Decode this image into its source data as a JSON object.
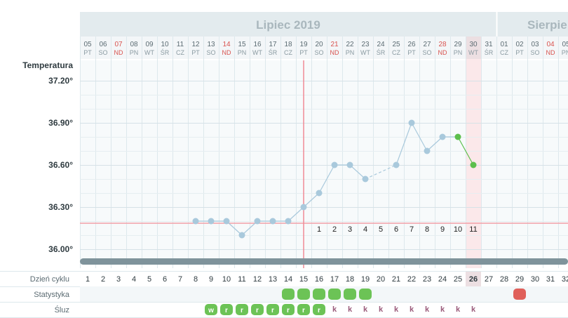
{
  "months": [
    {
      "label": "Lipiec 2019"
    },
    {
      "label": "Sierpie"
    }
  ],
  "temperature_label": "Temperatura",
  "days": [
    {
      "d": "05",
      "w": "PT",
      "red": false
    },
    {
      "d": "06",
      "w": "SO",
      "red": false
    },
    {
      "d": "07",
      "w": "ND",
      "red": true
    },
    {
      "d": "08",
      "w": "PN",
      "red": false
    },
    {
      "d": "09",
      "w": "WT",
      "red": false
    },
    {
      "d": "10",
      "w": "ŚR",
      "red": false
    },
    {
      "d": "11",
      "w": "CZ",
      "red": false
    },
    {
      "d": "12",
      "w": "PT",
      "red": false
    },
    {
      "d": "13",
      "w": "SO",
      "red": false
    },
    {
      "d": "14",
      "w": "ND",
      "red": true
    },
    {
      "d": "15",
      "w": "PN",
      "red": false
    },
    {
      "d": "16",
      "w": "WT",
      "red": false
    },
    {
      "d": "17",
      "w": "ŚR",
      "red": false
    },
    {
      "d": "18",
      "w": "CZ",
      "red": false
    },
    {
      "d": "19",
      "w": "PT",
      "red": false
    },
    {
      "d": "20",
      "w": "SO",
      "red": false
    },
    {
      "d": "21",
      "w": "ND",
      "red": true
    },
    {
      "d": "22",
      "w": "PN",
      "red": false
    },
    {
      "d": "23",
      "w": "WT",
      "red": false
    },
    {
      "d": "24",
      "w": "ŚR",
      "red": false
    },
    {
      "d": "25",
      "w": "CZ",
      "red": false
    },
    {
      "d": "26",
      "w": "PT",
      "red": false
    },
    {
      "d": "27",
      "w": "SO",
      "red": false
    },
    {
      "d": "28",
      "w": "ND",
      "red": true
    },
    {
      "d": "29",
      "w": "PN",
      "red": false
    },
    {
      "d": "30",
      "w": "WT",
      "red": false
    },
    {
      "d": "31",
      "w": "ŚR",
      "red": false
    },
    {
      "d": "01",
      "w": "CZ",
      "red": false
    },
    {
      "d": "02",
      "w": "PT",
      "red": false
    },
    {
      "d": "03",
      "w": "SO",
      "red": false
    },
    {
      "d": "04",
      "w": "ND",
      "red": true
    },
    {
      "d": "05",
      "w": "PN",
      "red": false
    }
  ],
  "chart_data": {
    "type": "line",
    "y_ticks": [
      "37.20°",
      "36.90°",
      "36.60°",
      "36.30°",
      "36.00°"
    ],
    "ylim": [
      35.95,
      37.3
    ],
    "coverline": 36.185,
    "ovulation_day_index": 14,
    "today_index": 25,
    "points": [
      {
        "i": 7,
        "v": 36.2
      },
      {
        "i": 8,
        "v": 36.2
      },
      {
        "i": 9,
        "v": 36.2
      },
      {
        "i": 10,
        "v": 36.1
      },
      {
        "i": 11,
        "v": 36.2
      },
      {
        "i": 12,
        "v": 36.2
      },
      {
        "i": 13,
        "v": 36.2
      },
      {
        "i": 14,
        "v": 36.3
      },
      {
        "i": 15,
        "v": 36.4
      },
      {
        "i": 16,
        "v": 36.6
      },
      {
        "i": 17,
        "v": 36.6
      },
      {
        "i": 18,
        "v": 36.5
      },
      {
        "i": 20,
        "v": 36.6
      },
      {
        "i": 21,
        "v": 36.9
      },
      {
        "i": 22,
        "v": 36.7
      },
      {
        "i": 23,
        "v": 36.8
      },
      {
        "i": 24,
        "v": 36.8
      },
      {
        "i": 25,
        "v": 36.6
      }
    ],
    "luteal_labels": [
      {
        "i": 15,
        "t": "1"
      },
      {
        "i": 16,
        "t": "2"
      },
      {
        "i": 17,
        "t": "3"
      },
      {
        "i": 18,
        "t": "4"
      },
      {
        "i": 19,
        "t": "5"
      },
      {
        "i": 20,
        "t": "6"
      },
      {
        "i": 21,
        "t": "7"
      },
      {
        "i": 22,
        "t": "8"
      },
      {
        "i": 23,
        "t": "9"
      },
      {
        "i": 24,
        "t": "10"
      },
      {
        "i": 25,
        "t": "11"
      }
    ],
    "colors": {
      "point": "#a9c9dc",
      "line": "#a9c9dc",
      "recent": "#5cbf4c",
      "coverline": "#f2a0a8",
      "ovulation": "#f08a96",
      "today_band": "#fbe8ea"
    }
  },
  "rows": {
    "cycle_label": "Dzień cyklu",
    "stats_label": "Statystyka",
    "mucus_label": "Śluz",
    "cycle_days": [
      "1",
      "2",
      "3",
      "4",
      "5",
      "6",
      "7",
      "8",
      "9",
      "10",
      "11",
      "12",
      "13",
      "14",
      "15",
      "16",
      "17",
      "18",
      "19",
      "20",
      "21",
      "22",
      "23",
      "24",
      "25",
      "26",
      "27",
      "28",
      "29",
      "30",
      "31",
      "32"
    ],
    "stats_marks": [
      13,
      14,
      15,
      16,
      17,
      18
    ],
    "stats_new_cycle_mark": 28,
    "mucus": [
      {
        "i": 8,
        "t": "w"
      },
      {
        "i": 9,
        "t": "r"
      },
      {
        "i": 10,
        "t": "r"
      },
      {
        "i": 11,
        "t": "r"
      },
      {
        "i": 12,
        "t": "r"
      },
      {
        "i": 13,
        "t": "r"
      },
      {
        "i": 14,
        "t": "r"
      },
      {
        "i": 15,
        "t": "r"
      },
      {
        "i": 16,
        "t": "k"
      },
      {
        "i": 17,
        "t": "k"
      },
      {
        "i": 18,
        "t": "k"
      },
      {
        "i": 19,
        "t": "k"
      },
      {
        "i": 20,
        "t": "k"
      },
      {
        "i": 21,
        "t": "k"
      },
      {
        "i": 22,
        "t": "k"
      },
      {
        "i": 23,
        "t": "k"
      },
      {
        "i": 24,
        "t": "k"
      },
      {
        "i": 25,
        "t": "k"
      }
    ]
  }
}
